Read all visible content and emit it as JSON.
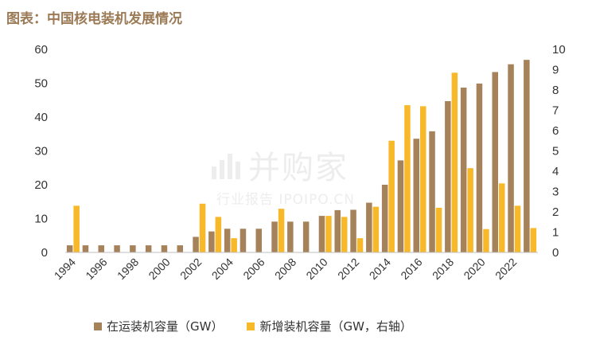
{
  "title": "图表：中国核电装机发展情况",
  "watermark": {
    "brand": "并购家",
    "tagline": "行业报告 IPOIPO.CN"
  },
  "colors": {
    "operating": "#a5825a",
    "new": "#f7b82a",
    "title": "#9b7a55"
  },
  "chart_data": {
    "type": "bar",
    "title": "",
    "xlabel": "",
    "ylabel": "",
    "categories": [
      "1994",
      "1995",
      "1996",
      "1997",
      "1998",
      "1999",
      "2000",
      "2001",
      "2002",
      "2003",
      "2004",
      "2005",
      "2006",
      "2007",
      "2008",
      "2009",
      "2010",
      "2011",
      "2012",
      "2013",
      "2014",
      "2015",
      "2016",
      "2017",
      "2018",
      "2019",
      "2020",
      "2021",
      "2022",
      "2023"
    ],
    "x_tick_labels": [
      "1994",
      "1996",
      "1998",
      "2000",
      "2002",
      "2004",
      "2006",
      "2008",
      "2010",
      "2012",
      "2014",
      "2016",
      "2018",
      "2020",
      "2022"
    ],
    "ylim": [
      0,
      60
    ],
    "yticks": [
      "0",
      "10",
      "20",
      "30",
      "40",
      "50",
      "60"
    ],
    "y2lim": [
      0,
      10
    ],
    "y2ticks": [
      "0",
      "1",
      "2",
      "3",
      "4",
      "5",
      "6",
      "7",
      "8",
      "9",
      "10"
    ],
    "grid": false,
    "legend_position": "bottom",
    "series": [
      {
        "name": "在运装机容量（GW）",
        "axis": "left",
        "values": [
          2.1,
          2.1,
          2.1,
          2.1,
          2.1,
          2.1,
          2.1,
          2.1,
          4.6,
          6.2,
          7.0,
          7.0,
          7.0,
          9.1,
          9.1,
          9.1,
          10.8,
          12.5,
          12.6,
          14.7,
          20.0,
          27.2,
          33.6,
          35.8,
          44.7,
          48.7,
          49.9,
          53.3,
          55.6,
          56.9
        ]
      },
      {
        "name": "新增装机容量（GW，右轴）",
        "axis": "right",
        "values": [
          2.3,
          0,
          0,
          0,
          0,
          0,
          0,
          0,
          2.4,
          1.75,
          0.7,
          0,
          0,
          2.15,
          0,
          0,
          1.8,
          1.75,
          0.7,
          2.25,
          5.5,
          7.25,
          7.2,
          2.2,
          8.85,
          4.15,
          1.15,
          3.4,
          2.3,
          1.2
        ]
      }
    ]
  }
}
